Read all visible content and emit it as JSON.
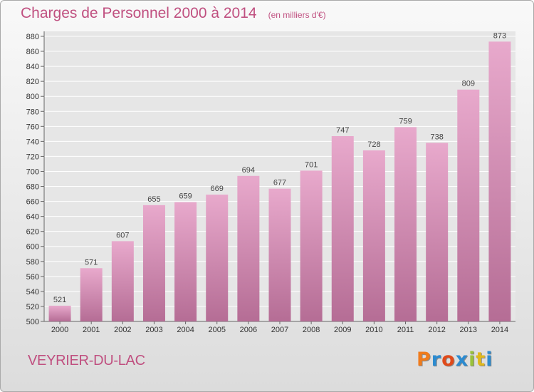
{
  "chart_data": {
    "type": "bar",
    "title": "Charges de Personnel 2000 à 2014",
    "subtitle": "(en milliers d'€)",
    "categories": [
      "2000",
      "2001",
      "2002",
      "2003",
      "2004",
      "2005",
      "2006",
      "2007",
      "2008",
      "2009",
      "2010",
      "2011",
      "2012",
      "2013",
      "2014"
    ],
    "values": [
      521,
      571,
      607,
      655,
      659,
      669,
      694,
      677,
      701,
      747,
      728,
      759,
      738,
      809,
      873
    ],
    "ylim": [
      500,
      880
    ],
    "yticks": [
      500,
      520,
      540,
      560,
      580,
      600,
      620,
      640,
      660,
      680,
      700,
      720,
      740,
      760,
      780,
      800,
      820,
      840,
      860,
      880
    ],
    "xlabel": "",
    "ylabel": "",
    "grid": true,
    "colors": {
      "bar_light": "#e8a9cc",
      "bar_dark": "#b56d95",
      "title": "#c05080"
    }
  },
  "footer": {
    "town": "VEYRIER-DU-LAC",
    "logo_letters": [
      "P",
      "r",
      "o",
      "x",
      "i",
      "t",
      "i"
    ],
    "logo_colors": [
      "#f07c1c",
      "#2c8bd0",
      "#e04a1a",
      "#2c8bd0",
      "#9ac33a",
      "#e0b81c",
      "#2c8bd0"
    ]
  }
}
